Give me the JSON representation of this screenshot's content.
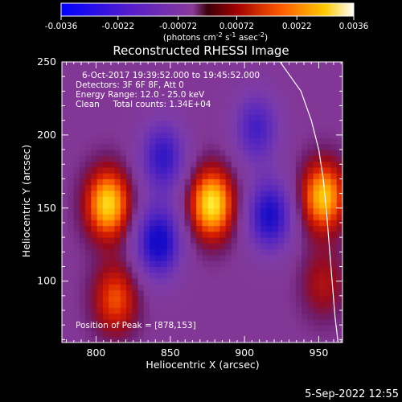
{
  "chart_data": {
    "type": "heatmap",
    "title": "Reconstructed RHESSI Image",
    "xlabel": "Heliocentric X (arcsec)",
    "ylabel": "Heliocentric Y (arcsec)",
    "xlim": [
      777,
      966
    ],
    "ylim": [
      58,
      250
    ],
    "xticks": [
      800,
      850,
      900,
      950
    ],
    "yticks": [
      100,
      150,
      200,
      250
    ],
    "colorbar": {
      "range": [
        -0.0036,
        0.0036
      ],
      "ticks": [
        "-0.0036",
        "-0.0022",
        "-0.00072",
        "0.00072",
        "0.0022",
        "0.0036"
      ],
      "unit_prefix": "(photons cm",
      "unit_exp1": "-2",
      "unit_mid1": " s",
      "unit_exp2": "-1",
      "unit_mid2": " asec",
      "unit_exp3": "-2",
      "unit_suffix": ")"
    },
    "info_lines": [
      "6-Oct-2017 19:39:52.000 to 19:45:52.000",
      "Detectors: 3F 6F 8F, Att 0",
      "Energy Range: 12.0 - 25.0 keV",
      "Clean     Total counts: 1.34E+04"
    ],
    "peak_label": "Position of Peak = [878,153]",
    "peak": [
      878,
      153
    ],
    "sources": [
      {
        "x": 808,
        "y": 153,
        "value": 0.0034
      },
      {
        "x": 878,
        "y": 153,
        "value": 0.0036
      },
      {
        "x": 953,
        "y": 158,
        "value": 0.0032
      },
      {
        "x": 813,
        "y": 88,
        "value": 0.0021
      },
      {
        "x": 953,
        "y": 98,
        "value": 0.0012
      },
      {
        "x": 842,
        "y": 127,
        "value": -0.0034
      },
      {
        "x": 845,
        "y": 185,
        "value": -0.0026
      },
      {
        "x": 917,
        "y": 145,
        "value": -0.0031
      },
      {
        "x": 908,
        "y": 205,
        "value": -0.0022
      }
    ],
    "limb": [
      [
        924,
        250
      ],
      [
        938,
        230
      ],
      [
        945,
        210
      ],
      [
        950,
        190
      ],
      [
        953,
        170
      ],
      [
        955,
        150
      ],
      [
        957,
        125
      ],
      [
        959,
        100
      ],
      [
        961,
        75
      ],
      [
        963,
        58
      ]
    ],
    "timestamp": "5-Sep-2022 12:55"
  }
}
